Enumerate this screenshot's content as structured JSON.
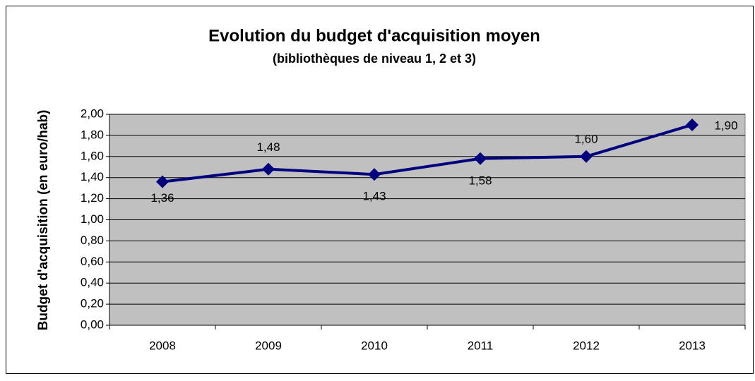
{
  "chart_data": {
    "type": "line",
    "title": "Evolution du budget d'acquisition moyen",
    "subtitle": "(bibliothèques de niveau 1, 2 et 3)",
    "y_label": "Budget d'acquisition (en euro/hab)",
    "categories": [
      "2008",
      "2009",
      "2010",
      "2011",
      "2012",
      "2013"
    ],
    "series": [
      {
        "name": "Budget d'acquisition",
        "color": "#00007f",
        "values": [
          1.36,
          1.48,
          1.43,
          1.58,
          1.6,
          1.9
        ],
        "value_labels": [
          "1,36",
          "1,48",
          "1,43",
          "1,58",
          "1,60",
          "1,90"
        ]
      }
    ],
    "ylim": [
      0,
      2
    ],
    "yticks": [
      {
        "value": 0,
        "label": "0,00"
      },
      {
        "value": 0.2,
        "label": "0,20"
      },
      {
        "value": 0.4,
        "label": "0,40"
      },
      {
        "value": 0.6,
        "label": "0,60"
      },
      {
        "value": 0.8,
        "label": "0,80"
      },
      {
        "value": 1,
        "label": "1,00"
      },
      {
        "value": 1.2,
        "label": "1,20"
      },
      {
        "value": 1.4,
        "label": "1,40"
      },
      {
        "value": 1.6,
        "label": "1,60"
      },
      {
        "value": 1.8,
        "label": "1,80"
      },
      {
        "value": 2,
        "label": "2,00"
      }
    ],
    "grid": true,
    "plot_background": "#c0c0c0"
  }
}
